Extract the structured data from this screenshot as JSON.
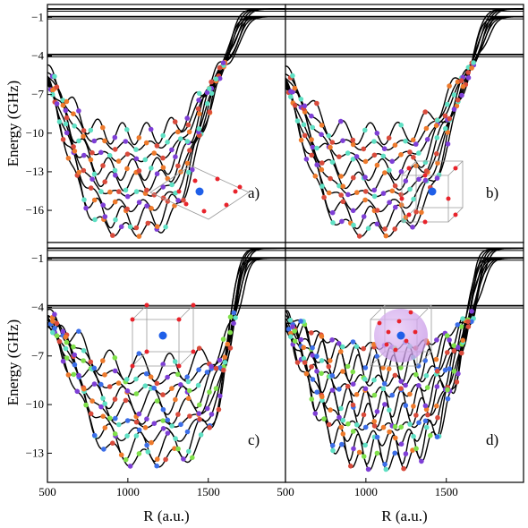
{
  "figure": {
    "ylabel": "Energy (GHz)",
    "xlabel": "R (a.u.)"
  },
  "chart_data": [
    {
      "panel": "a)",
      "type": "line",
      "xlim": [
        500,
        1980
      ],
      "ylim": [
        -18.5,
        0
      ],
      "yticks": [
        -1,
        -4,
        -7,
        -10,
        -13,
        -16
      ],
      "xticks": [],
      "thresholds": [
        -0.35,
        -0.95,
        -3.9
      ],
      "min_energy": -17.5,
      "well_center": 1030,
      "well_halfwidth": 560,
      "rise_at": 1640,
      "osc_period": 150,
      "n_curves": 9,
      "marker_colors": [
        "#d94b3c",
        "#7e3fd6",
        "#5fe0c4",
        "#ee7a2c"
      ],
      "inset": "planar-ring"
    },
    {
      "panel": "b)",
      "type": "line",
      "xlim": [
        500,
        1980
      ],
      "ylim": [
        -18.5,
        0
      ],
      "yticks": [],
      "xticks": [],
      "thresholds": [
        -0.35,
        -0.95,
        -3.9
      ],
      "min_energy": -17.5,
      "well_center": 1060,
      "well_halfwidth": 600,
      "rise_at": 1690,
      "osc_period": 170,
      "n_curves": 9,
      "marker_colors": [
        "#ee7a2c",
        "#d94b3c",
        "#5fe0c4",
        "#7e3fd6"
      ],
      "inset": "cube-corners"
    },
    {
      "panel": "c)",
      "type": "line",
      "xlim": [
        500,
        1980
      ],
      "ylim": [
        -14.8,
        0
      ],
      "yticks": [
        -1,
        -4,
        -7,
        -10,
        -13
      ],
      "xticks": [
        500,
        1000,
        1500
      ],
      "thresholds": [
        -0.35,
        -0.95,
        -3.9
      ],
      "min_energy": -13.3,
      "well_center": 1150,
      "well_halfwidth": 650,
      "rise_at": 1640,
      "osc_period": 185,
      "n_curves": 9,
      "marker_colors": [
        "#7e3fd6",
        "#7fe04a",
        "#5fe0c4",
        "#3c6ee8",
        "#d94b3c",
        "#ee7a2c"
      ],
      "inset": "cube-corners-center"
    },
    {
      "panel": "d)",
      "type": "line",
      "xlim": [
        500,
        1980
      ],
      "ylim": [
        -14.8,
        0
      ],
      "yticks": [],
      "xticks": [
        500,
        1000,
        1500
      ],
      "thresholds": [
        -0.35,
        -0.95,
        -3.9
      ],
      "min_energy": -13.5,
      "well_center": 1100,
      "well_halfwidth": 620,
      "rise_at": 1640,
      "osc_period": 110,
      "n_curves": 11,
      "marker_colors": [
        "#7e3fd6",
        "#7fe04a",
        "#5fe0c4",
        "#3c6ee8",
        "#d94b3c",
        "#ee7a2c"
      ],
      "inset": "sphere-random"
    }
  ]
}
